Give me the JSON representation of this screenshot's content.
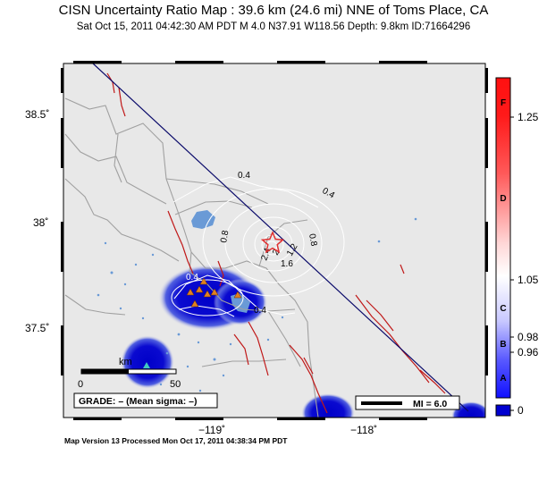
{
  "header": {
    "title": "CISN Uncertainty Ratio Map : 39.6 km (24.6 mi) NNE of Toms Place, CA",
    "subtitle": "Sat Oct 15, 2011 04:42:30 AM PDT    M 4.0    N37.91 W118.56    Depth: 9.8km    ID:71664296"
  },
  "map": {
    "lat_labels": [
      "38.5˚",
      "38˚",
      "37.5˚"
    ],
    "lon_labels": [
      "−119˚",
      "−118˚"
    ],
    "contour_labels": [
      "0.4",
      "0.4",
      "0.8",
      "0.8",
      "1.2",
      "1.6",
      "2",
      "2.4",
      "0.4",
      "0.4"
    ],
    "epicenter": {
      "lat": 37.91,
      "lon": -118.56,
      "symbol": "star-icon",
      "color": "#e03030"
    },
    "scalebar": {
      "unit": "km",
      "start": "0",
      "end": "50"
    },
    "grade_text": "GRADE: – (Mean sigma: –)",
    "mi_legend": "MI = 6.0",
    "colors": {
      "land": "#e8e8e8",
      "water": "#6a9ad6",
      "roads": "#a0a0a0",
      "faults": "#c01818",
      "high_uncertainty": "#0000d0",
      "stations": "#e08020"
    }
  },
  "colorbar": {
    "letters": [
      "F",
      "D",
      "C",
      "B",
      "A"
    ],
    "values": [
      "1.25",
      "1.05",
      "0.98",
      "0.96",
      "0"
    ],
    "colors": {
      "top": "#ff1010",
      "mid": "#ffffff",
      "bottom": "#1010ff"
    }
  },
  "footer": {
    "text": "Map Version 13 Processed Mon Oct 17, 2011 04:38:34 PM PDT"
  }
}
